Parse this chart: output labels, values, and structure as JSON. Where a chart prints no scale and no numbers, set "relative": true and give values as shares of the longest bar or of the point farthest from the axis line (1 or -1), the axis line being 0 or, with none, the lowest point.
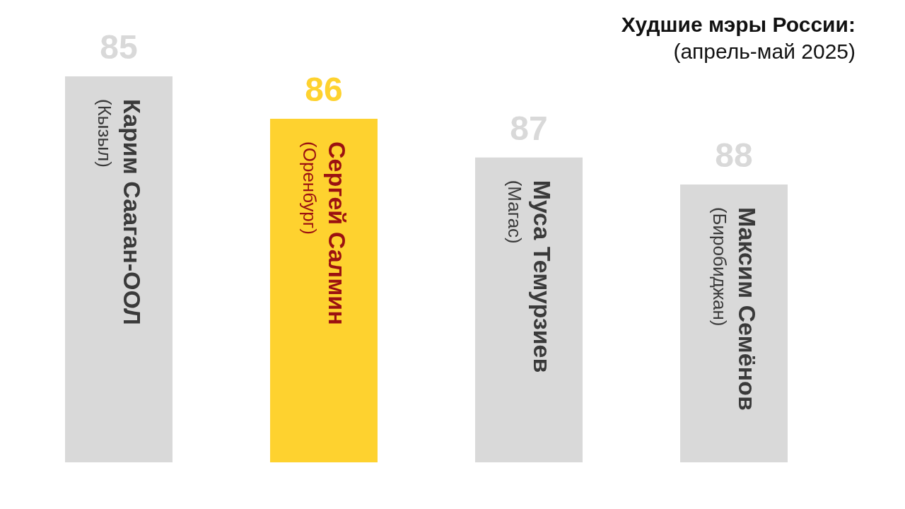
{
  "chart_data": {
    "type": "bar",
    "title": "Худшие мэры России:",
    "subtitle": "(апрель-май 2025)",
    "categories": [
      "Карим Сааган-ООЛ\n(Кызыл)",
      "Сергей Салмин\n(Оренбург)",
      "Муса Темурзиев\n(Магас)",
      "Максим Семёнов\n(Биробиджан)"
    ],
    "values": [
      1,
      0.89,
      0.79,
      0.72
    ],
    "colors": [
      "#d9d9d9",
      "#fed22f",
      "#d9d9d9",
      "#d9d9d9"
    ],
    "relative": true,
    "annotations": [
      {
        "text": "85",
        "x": "Карим Сааган-ООЛ\n(Кызыл)",
        "y": 1
      },
      {
        "text": "86",
        "x": "Сергей Салмин\n(Оренбург)",
        "y": 0.89
      },
      {
        "text": "87",
        "x": "Муса Темурзиев\n(Магас)",
        "y": 0.79
      },
      {
        "text": "88",
        "x": "Максим Семёнов\n(Биробиджан)",
        "y": 0.72
      }
    ]
  }
}
